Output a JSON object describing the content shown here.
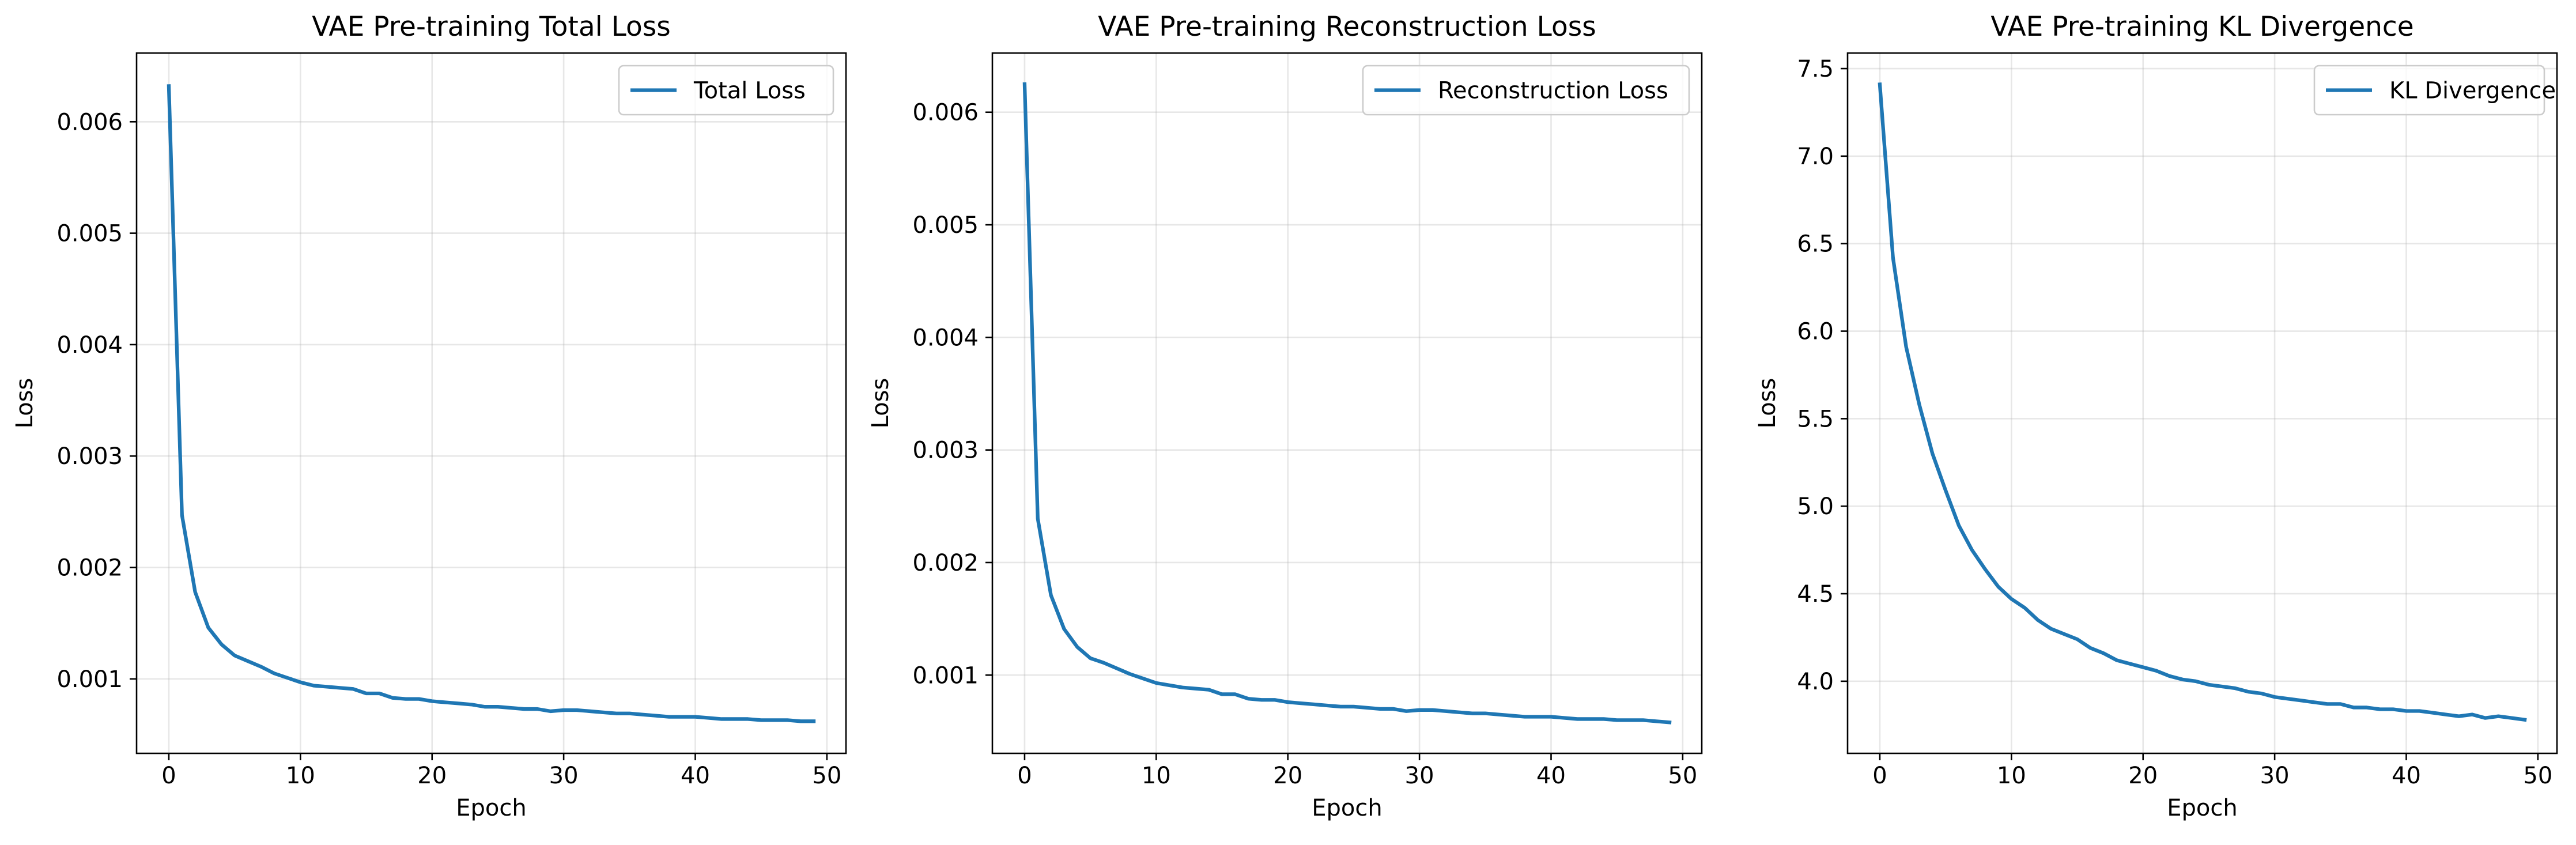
{
  "chart_data": [
    {
      "type": "line",
      "title": "VAE Pre-training Total Loss",
      "xlabel": "Epoch",
      "ylabel": "Loss",
      "xlim": [
        -2.45,
        51.45
      ],
      "ylim": [
        0.000332,
        0.006617
      ],
      "xticks": [
        0,
        10,
        20,
        30,
        40,
        50
      ],
      "yticks": [
        0.001,
        0.002,
        0.003,
        0.004,
        0.005,
        0.006
      ],
      "ytick_labels": [
        "0.001",
        "0.002",
        "0.003",
        "0.004",
        "0.005",
        "0.006"
      ],
      "grid": true,
      "legend_position": "top-right",
      "series": [
        {
          "name": "Total Loss",
          "color": "#1f77b4",
          "x": [
            0,
            1,
            2,
            3,
            4,
            5,
            6,
            7,
            8,
            9,
            10,
            11,
            12,
            13,
            14,
            15,
            16,
            17,
            18,
            19,
            20,
            21,
            22,
            23,
            24,
            25,
            26,
            27,
            28,
            29,
            30,
            31,
            32,
            33,
            34,
            35,
            36,
            37,
            38,
            39,
            40,
            41,
            42,
            43,
            44,
            45,
            46,
            47,
            48,
            49
          ],
          "values": [
            0.00632,
            0.00247,
            0.00178,
            0.00146,
            0.00131,
            0.00121,
            0.00116,
            0.00111,
            0.00105,
            0.00101,
            0.00097,
            0.00094,
            0.00093,
            0.00092,
            0.00091,
            0.00087,
            0.00087,
            0.00083,
            0.00082,
            0.00082,
            0.0008,
            0.00079,
            0.00078,
            0.00077,
            0.00075,
            0.00075,
            0.00074,
            0.00073,
            0.00073,
            0.00071,
            0.00072,
            0.00072,
            0.00071,
            0.0007,
            0.00069,
            0.00069,
            0.00068,
            0.00067,
            0.00066,
            0.00066,
            0.00066,
            0.00065,
            0.00064,
            0.00064,
            0.00064,
            0.00063,
            0.00063,
            0.00063,
            0.00062,
            0.00062
          ]
        }
      ]
    },
    {
      "type": "line",
      "title": "VAE Pre-training Reconstruction Loss",
      "xlabel": "Epoch",
      "ylabel": "Loss",
      "xlim": [
        -2.45,
        51.45
      ],
      "ylim": [
        0.000305,
        0.006526
      ],
      "xticks": [
        0,
        10,
        20,
        30,
        40,
        50
      ],
      "yticks": [
        0.001,
        0.002,
        0.003,
        0.004,
        0.005,
        0.006
      ],
      "ytick_labels": [
        "0.001",
        "0.002",
        "0.003",
        "0.004",
        "0.005",
        "0.006"
      ],
      "grid": true,
      "legend_position": "top-right",
      "series": [
        {
          "name": "Reconstruction Loss",
          "color": "#1f77b4",
          "x": [
            0,
            1,
            2,
            3,
            4,
            5,
            6,
            7,
            8,
            9,
            10,
            11,
            12,
            13,
            14,
            15,
            16,
            17,
            18,
            19,
            20,
            21,
            22,
            23,
            24,
            25,
            26,
            27,
            28,
            29,
            30,
            31,
            32,
            33,
            34,
            35,
            36,
            37,
            38,
            39,
            40,
            41,
            42,
            43,
            44,
            45,
            46,
            47,
            48,
            49
          ],
          "values": [
            0.00625,
            0.00239,
            0.00171,
            0.00141,
            0.00125,
            0.00115,
            0.00111,
            0.00106,
            0.00101,
            0.00097,
            0.00093,
            0.00091,
            0.00089,
            0.00088,
            0.00087,
            0.00083,
            0.00083,
            0.00079,
            0.00078,
            0.00078,
            0.00076,
            0.00075,
            0.00074,
            0.00073,
            0.00072,
            0.00072,
            0.00071,
            0.0007,
            0.0007,
            0.00068,
            0.00069,
            0.00069,
            0.00068,
            0.00067,
            0.00066,
            0.00066,
            0.00065,
            0.00064,
            0.00063,
            0.00063,
            0.00063,
            0.00062,
            0.00061,
            0.00061,
            0.00061,
            0.0006,
            0.0006,
            0.0006,
            0.00059,
            0.00058
          ]
        }
      ]
    },
    {
      "type": "line",
      "title": "VAE Pre-training KL Divergence",
      "xlabel": "Epoch",
      "ylabel": "Loss",
      "xlim": [
        -2.45,
        51.45
      ],
      "ylim": [
        3.588,
        7.589
      ],
      "xticks": [
        0,
        10,
        20,
        30,
        40,
        50
      ],
      "yticks": [
        4.0,
        4.5,
        5.0,
        5.5,
        6.0,
        6.5,
        7.0,
        7.5
      ],
      "ytick_labels": [
        "4.0",
        "4.5",
        "5.0",
        "5.5",
        "6.0",
        "6.5",
        "7.0",
        "7.5"
      ],
      "grid": true,
      "legend_position": "top-right",
      "series": [
        {
          "name": "KL Divergence",
          "color": "#1f77b4",
          "x": [
            0,
            1,
            2,
            3,
            4,
            5,
            6,
            7,
            8,
            9,
            10,
            11,
            12,
            13,
            14,
            15,
            16,
            17,
            18,
            19,
            20,
            21,
            22,
            23,
            24,
            25,
            26,
            27,
            28,
            29,
            30,
            31,
            32,
            33,
            34,
            35,
            36,
            37,
            38,
            39,
            40,
            41,
            42,
            43,
            44,
            45,
            46,
            47,
            48,
            49
          ],
          "values": [
            7.41,
            6.42,
            5.91,
            5.58,
            5.3,
            5.09,
            4.89,
            4.75,
            4.64,
            4.54,
            4.47,
            4.42,
            4.35,
            4.3,
            4.27,
            4.24,
            4.19,
            4.16,
            4.12,
            4.1,
            4.08,
            4.06,
            4.03,
            4.01,
            4.0,
            3.98,
            3.97,
            3.96,
            3.94,
            3.93,
            3.91,
            3.9,
            3.89,
            3.88,
            3.87,
            3.87,
            3.85,
            3.85,
            3.84,
            3.84,
            3.83,
            3.83,
            3.82,
            3.81,
            3.8,
            3.81,
            3.79,
            3.8,
            3.79,
            3.78
          ]
        }
      ]
    }
  ]
}
